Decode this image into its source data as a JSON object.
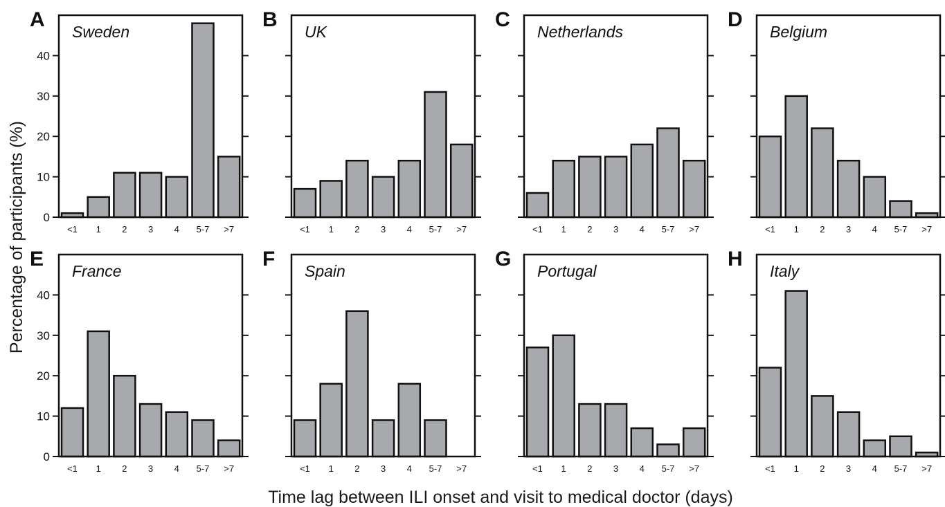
{
  "figure": {
    "ylabel": "Percentage of participants (%)",
    "xlabel": "Time lag between ILI onset and visit to medical doctor (days)"
  },
  "chart_data": [
    {
      "type": "bar",
      "panel": "A",
      "title": "Sweden",
      "categories": [
        "<1",
        "1",
        "2",
        "3",
        "4",
        "5-7",
        ">7"
      ],
      "values": [
        1,
        5,
        11,
        11,
        10,
        48,
        15
      ],
      "ylim": [
        0,
        50
      ],
      "yticks": [
        0,
        10,
        20,
        30,
        40
      ],
      "bar_color": "#a7a9ac"
    },
    {
      "type": "bar",
      "panel": "B",
      "title": "UK",
      "categories": [
        "<1",
        "1",
        "2",
        "3",
        "4",
        "5-7",
        ">7"
      ],
      "values": [
        7,
        9,
        14,
        10,
        14,
        31,
        18
      ],
      "ylim": [
        0,
        50
      ],
      "yticks": [
        0,
        10,
        20,
        30,
        40
      ],
      "bar_color": "#a7a9ac"
    },
    {
      "type": "bar",
      "panel": "C",
      "title": "Netherlands",
      "categories": [
        "<1",
        "1",
        "2",
        "3",
        "4",
        "5-7",
        ">7"
      ],
      "values": [
        6,
        14,
        15,
        15,
        18,
        22,
        14
      ],
      "ylim": [
        0,
        50
      ],
      "yticks": [
        0,
        10,
        20,
        30,
        40
      ],
      "bar_color": "#a7a9ac"
    },
    {
      "type": "bar",
      "panel": "D",
      "title": "Belgium",
      "categories": [
        "<1",
        "1",
        "2",
        "3",
        "4",
        "5-7",
        ">7"
      ],
      "values": [
        20,
        30,
        22,
        14,
        10,
        4,
        1
      ],
      "ylim": [
        0,
        50
      ],
      "yticks": [
        0,
        10,
        20,
        30,
        40
      ],
      "bar_color": "#a7a9ac"
    },
    {
      "type": "bar",
      "panel": "E",
      "title": "France",
      "categories": [
        "<1",
        "1",
        "2",
        "3",
        "4",
        "5-7",
        ">7"
      ],
      "values": [
        12,
        31,
        20,
        13,
        11,
        9,
        4
      ],
      "ylim": [
        0,
        50
      ],
      "yticks": [
        0,
        10,
        20,
        30,
        40
      ],
      "bar_color": "#a7a9ac"
    },
    {
      "type": "bar",
      "panel": "F",
      "title": "Spain",
      "categories": [
        "<1",
        "1",
        "2",
        "3",
        "4",
        "5-7",
        ">7"
      ],
      "values": [
        9,
        18,
        36,
        9,
        18,
        9,
        0
      ],
      "ylim": [
        0,
        50
      ],
      "yticks": [
        0,
        10,
        20,
        30,
        40
      ],
      "bar_color": "#a7a9ac"
    },
    {
      "type": "bar",
      "panel": "G",
      "title": "Portugal",
      "categories": [
        "<1",
        "1",
        "2",
        "3",
        "4",
        "5-7",
        ">7"
      ],
      "values": [
        27,
        30,
        13,
        13,
        7,
        3,
        7
      ],
      "ylim": [
        0,
        50
      ],
      "yticks": [
        0,
        10,
        20,
        30,
        40
      ],
      "bar_color": "#a7a9ac"
    },
    {
      "type": "bar",
      "panel": "H",
      "title": "Italy",
      "categories": [
        "<1",
        "1",
        "2",
        "3",
        "4",
        "5-7",
        ">7"
      ],
      "values": [
        22,
        41,
        15,
        11,
        4,
        5,
        1
      ],
      "ylim": [
        0,
        50
      ],
      "yticks": [
        0,
        10,
        20,
        30,
        40
      ],
      "bar_color": "#a7a9ac"
    }
  ]
}
